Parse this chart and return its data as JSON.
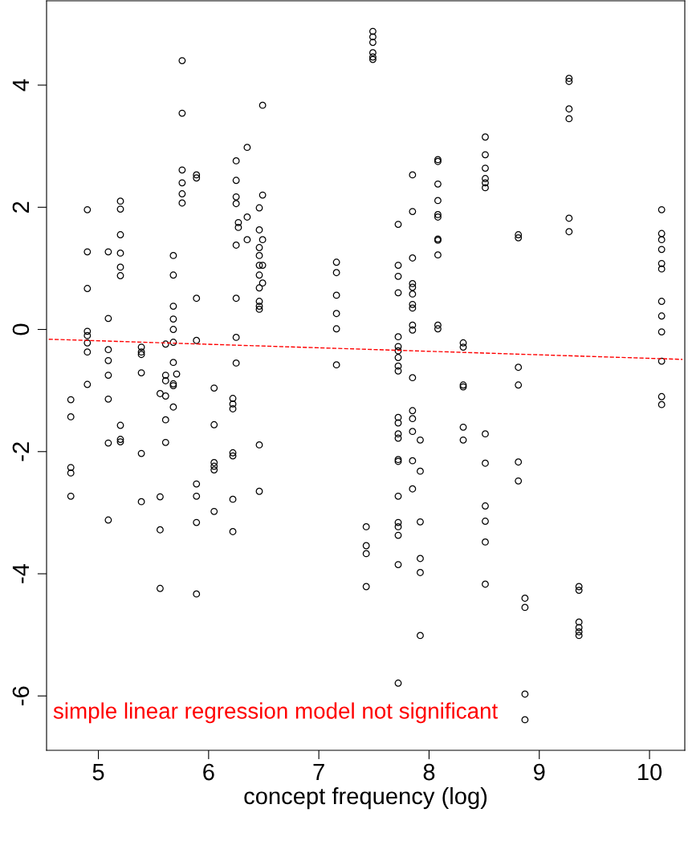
{
  "chart_data": {
    "type": "scatter",
    "xlabel": "concept frequency (log)",
    "xlim": [
      4.53,
      10.32
    ],
    "xticks": [
      5,
      6,
      7,
      8,
      9,
      10
    ],
    "ylim": [
      -6.89,
      5.38
    ],
    "yticks": [
      -6,
      -4,
      -2,
      0,
      2,
      4
    ],
    "grid": false,
    "marker": "circle",
    "annotations": [
      "simple linear regression model not significant"
    ],
    "series": [
      {
        "color": "#000000",
        "x": [
          4.75,
          4.75,
          4.75,
          4.75,
          4.75,
          4.9,
          4.9,
          4.9,
          4.9,
          4.9,
          4.9,
          4.9,
          4.9,
          5.09,
          5.09,
          5.09,
          5.09,
          5.09,
          5.09,
          5.09,
          5.09,
          5.2,
          5.2,
          5.2,
          5.2,
          5.2,
          5.2,
          5.2,
          5.2,
          5.2,
          5.39,
          5.39,
          5.39,
          5.39,
          5.39,
          5.39,
          5.56,
          5.56,
          5.56,
          5.56,
          5.61,
          5.61,
          5.61,
          5.61,
          5.61,
          5.61,
          5.68,
          5.68,
          5.68,
          5.68,
          5.68,
          5.68,
          5.68,
          5.68,
          5.68,
          5.68,
          5.71,
          5.76,
          5.76,
          5.76,
          5.76,
          5.76,
          5.76,
          5.89,
          5.89,
          5.89,
          5.89,
          5.89,
          5.89,
          5.89,
          5.89,
          6.05,
          6.05,
          6.05,
          6.05,
          6.05,
          6.05,
          6.22,
          6.22,
          6.22,
          6.22,
          6.22,
          6.22,
          6.22,
          6.25,
          6.25,
          6.25,
          6.25,
          6.25,
          6.25,
          6.25,
          6.25,
          6.27,
          6.27,
          6.35,
          6.35,
          6.35,
          6.46,
          6.46,
          6.46,
          6.46,
          6.46,
          6.46,
          6.46,
          6.46,
          6.46,
          6.46,
          6.46,
          6.46,
          6.49,
          6.49,
          6.49,
          6.49,
          6.49,
          7.16,
          7.16,
          7.16,
          7.16,
          7.16,
          7.16,
          7.43,
          7.43,
          7.43,
          7.43,
          7.49,
          7.49,
          7.49,
          7.49,
          7.49,
          7.49,
          7.72,
          7.72,
          7.72,
          7.72,
          7.72,
          7.72,
          7.72,
          7.72,
          7.72,
          7.72,
          7.72,
          7.72,
          7.72,
          7.72,
          7.72,
          7.72,
          7.72,
          7.72,
          7.72,
          7.72,
          7.72,
          7.72,
          7.85,
          7.85,
          7.85,
          7.85,
          7.85,
          7.85,
          7.85,
          7.85,
          7.85,
          7.85,
          7.85,
          7.85,
          7.85,
          7.85,
          7.85,
          7.85,
          7.92,
          7.92,
          7.92,
          7.92,
          7.92,
          7.92,
          8.08,
          8.08,
          8.08,
          8.08,
          8.08,
          8.08,
          8.08,
          8.08,
          8.08,
          8.08,
          8.08,
          8.31,
          8.31,
          8.31,
          8.31,
          8.31,
          8.31,
          8.51,
          8.51,
          8.51,
          8.51,
          8.51,
          8.51,
          8.51,
          8.51,
          8.51,
          8.51,
          8.51,
          8.51,
          8.81,
          8.81,
          8.81,
          8.81,
          8.81,
          8.81,
          8.87,
          8.87,
          8.87,
          8.87,
          9.27,
          9.27,
          9.27,
          9.27,
          9.27,
          9.27,
          9.36,
          9.36,
          9.36,
          9.36,
          9.36,
          9.36,
          10.11,
          10.11,
          10.11,
          10.11,
          10.11,
          10.11,
          10.11,
          10.11,
          10.11,
          10.11,
          10.11,
          10.11
        ],
        "values": [
          -1.15,
          -1.43,
          -2.26,
          -2.35,
          -2.73,
          1.96,
          1.27,
          0.67,
          -0.03,
          -0.1,
          -0.22,
          -0.37,
          -0.9,
          1.27,
          0.18,
          -0.33,
          -0.51,
          -0.75,
          -1.14,
          -1.86,
          -3.12,
          2.1,
          1.97,
          1.55,
          1.25,
          1.02,
          0.88,
          -1.57,
          -1.8,
          -1.84,
          -0.29,
          -0.37,
          -0.41,
          -0.71,
          -2.03,
          -2.82,
          -2.74,
          -3.28,
          -4.24,
          -1.05,
          -0.24,
          -0.75,
          -0.84,
          -1.09,
          -1.48,
          -1.85,
          1.21,
          0.89,
          0.38,
          0.17,
          0.0,
          -0.21,
          -0.54,
          -0.89,
          -0.92,
          -1.27,
          -0.73,
          4.4,
          3.54,
          2.61,
          2.4,
          2.22,
          2.07,
          2.53,
          2.48,
          0.51,
          -0.18,
          -2.53,
          -2.73,
          -3.16,
          -4.33,
          -0.96,
          -1.56,
          -2.18,
          -2.24,
          -2.3,
          -2.98,
          -1.13,
          -1.22,
          -1.3,
          -2.02,
          -2.07,
          -2.78,
          -3.31,
          2.76,
          2.44,
          2.17,
          2.06,
          1.38,
          0.51,
          -0.13,
          -0.55,
          1.75,
          1.67,
          2.98,
          1.84,
          1.47,
          1.99,
          1.63,
          1.34,
          1.21,
          1.05,
          0.89,
          0.68,
          0.46,
          0.38,
          0.33,
          -1.89,
          -2.65,
          3.67,
          2.2,
          1.47,
          1.05,
          0.76,
          1.1,
          0.93,
          0.56,
          0.26,
          0.01,
          -0.58,
          -3.23,
          -3.54,
          -3.67,
          -4.21,
          4.88,
          4.79,
          4.7,
          4.53,
          4.46,
          4.42,
          1.72,
          1.05,
          0.87,
          0.6,
          -0.12,
          -0.28,
          -0.35,
          -0.46,
          -0.6,
          -0.68,
          -1.44,
          -1.53,
          -1.71,
          -1.78,
          -2.13,
          -2.16,
          -2.73,
          -3.16,
          -3.23,
          -3.37,
          -3.85,
          -5.79,
          2.53,
          1.93,
          1.17,
          0.75,
          0.69,
          0.58,
          0.41,
          0.35,
          0.07,
          -0.01,
          -0.79,
          -1.33,
          -1.46,
          -1.67,
          -2.15,
          -2.61,
          -1.81,
          -2.32,
          -3.15,
          -3.75,
          -3.98,
          -5.01,
          2.78,
          2.75,
          2.38,
          2.11,
          1.88,
          1.84,
          1.48,
          1.46,
          1.22,
          0.07,
          0.01,
          -0.22,
          -0.29,
          -0.91,
          -0.94,
          -1.6,
          -1.81,
          3.15,
          2.86,
          2.64,
          2.47,
          2.4,
          2.32,
          -1.71,
          -2.19,
          -2.89,
          -3.14,
          -3.48,
          -4.17,
          1.55,
          1.5,
          -0.62,
          -0.91,
          -2.17,
          -2.48,
          -4.4,
          -4.55,
          -5.97,
          -6.39,
          4.11,
          4.06,
          3.61,
          3.45,
          1.82,
          1.6,
          -4.21,
          -4.27,
          -4.79,
          -4.88,
          -4.95,
          -5.01,
          1.96,
          1.57,
          1.47,
          1.31,
          1.08,
          0.99,
          0.46,
          0.22,
          -0.04,
          -0.52,
          -1.1,
          -1.23
        ]
      },
      {
        "type": "line",
        "color": "#ff0000",
        "line_style": "dashed",
        "marker": "none",
        "x": [
          4.55,
          10.3
        ],
        "values": [
          -0.16,
          -0.49
        ]
      }
    ]
  }
}
